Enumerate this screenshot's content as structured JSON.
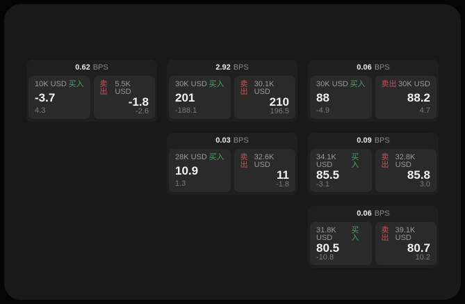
{
  "labels": {
    "bps_unit": "BPS",
    "buy": "买入",
    "sell": "卖出"
  },
  "colors": {
    "page_bg": "#191919",
    "card_bg": "#1f1f1f",
    "panel_bg": "#2a2a2a",
    "buy": "#4ca164",
    "sell": "#c25360"
  },
  "cards": [
    {
      "spread": "0.62",
      "buy": {
        "amount": "10K USD",
        "price": "-3.7",
        "sub": "4.3"
      },
      "sell": {
        "amount": "5.5K USD",
        "price": "-1.8",
        "sub": "-2.6"
      }
    },
    {
      "spread": "2.92",
      "buy": {
        "amount": "30K USD",
        "price": "201",
        "sub": "-188.1"
      },
      "sell": {
        "amount": "30.1K USD",
        "price": "210",
        "sub": "196.5"
      }
    },
    {
      "spread": "0.06",
      "buy": {
        "amount": "30K USD",
        "price": "88",
        "sub": "-4.9"
      },
      "sell": {
        "amount": "30K USD",
        "price": "88.2",
        "sub": "4.7"
      }
    },
    {
      "spread": "0.03",
      "buy": {
        "amount": "28K USD",
        "price": "10.9",
        "sub": "1.3"
      },
      "sell": {
        "amount": "32.6K USD",
        "price": "11",
        "sub": "-1.8"
      }
    },
    {
      "spread": "0.09",
      "buy": {
        "amount": "34.1K USD",
        "price": "85.5",
        "sub": "-3.1"
      },
      "sell": {
        "amount": "32.8K USD",
        "price": "85.8",
        "sub": "3.0"
      }
    },
    {
      "spread": "0.06",
      "buy": {
        "amount": "31.8K USD",
        "price": "80.5",
        "sub": "-10.8"
      },
      "sell": {
        "amount": "39.1K USD",
        "price": "80.7",
        "sub": "10.2"
      }
    }
  ]
}
